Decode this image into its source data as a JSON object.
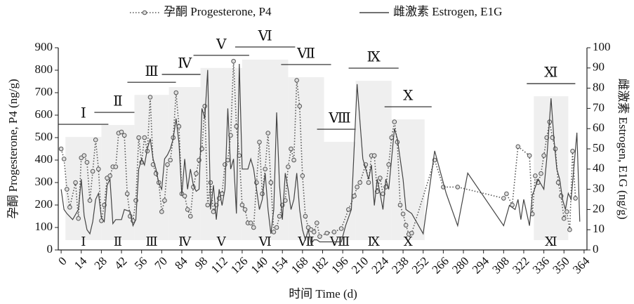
{
  "chart_data": {
    "type": "line",
    "xlabel": "时间 Time (d)",
    "ylabel": "孕酮 Progesterone, P4 (ng/g)",
    "y2label": "雌激素 Estrogen, E1G (ng/g)",
    "xlim": [
      -2,
      366
    ],
    "xticks": [
      0,
      14,
      28,
      42,
      56,
      70,
      84,
      98,
      112,
      126,
      140,
      154,
      168,
      182,
      196,
      210,
      224,
      238,
      252,
      266,
      280,
      294,
      308,
      322,
      336,
      350,
      364
    ],
    "ylim": [
      0,
      900
    ],
    "yticks": [
      0,
      100,
      200,
      300,
      400,
      500,
      600,
      700,
      800,
      900
    ],
    "y2lim": [
      0,
      100
    ],
    "y2ticks": [
      0,
      10,
      20,
      30,
      40,
      50,
      60,
      70,
      80,
      90,
      100
    ],
    "legend": "top",
    "periods": [
      {
        "label": "Ⅰ",
        "start": 3,
        "end": 28,
        "top": 503
      },
      {
        "label": "Ⅱ",
        "start": 28,
        "end": 51,
        "top": 556
      },
      {
        "label": "Ⅲ",
        "start": 51,
        "end": 75,
        "top": 690
      },
      {
        "label": "Ⅳ",
        "start": 75,
        "end": 97,
        "top": 725
      },
      {
        "label": "Ⅴ",
        "start": 97,
        "end": 126,
        "top": 810
      },
      {
        "label": "Ⅵ",
        "start": 126,
        "end": 158,
        "top": 847
      },
      {
        "label": "Ⅶ",
        "start": 158,
        "end": 183,
        "top": 769
      },
      {
        "label": "Ⅷ",
        "start": 183,
        "end": 205,
        "top": 481
      },
      {
        "label": "Ⅸ",
        "start": 205,
        "end": 230,
        "top": 753
      },
      {
        "label": "Ⅹ",
        "start": 230,
        "end": 253,
        "top": 581
      },
      {
        "label": "Ⅺ",
        "start": 329,
        "end": 353,
        "top": 684
      }
    ],
    "series": [
      {
        "name": "孕酮 Progesterone, P4",
        "color": "#555555",
        "style": "dotted",
        "x": [
          0,
          2,
          4,
          6,
          10,
          12,
          14,
          16,
          18,
          20,
          22,
          24,
          26,
          28,
          30,
          32,
          34,
          36,
          38,
          40,
          42,
          44,
          46,
          48,
          50,
          52,
          54,
          56,
          58,
          60,
          62,
          64,
          66,
          68,
          70,
          72,
          74,
          76,
          78,
          80,
          82,
          84,
          86,
          88,
          90,
          92,
          94,
          96,
          98,
          100,
          102,
          104,
          106,
          108,
          110,
          112,
          114,
          116,
          118,
          120,
          122,
          124,
          126,
          128,
          130,
          132,
          134,
          136,
          138,
          140,
          142,
          144,
          146,
          148,
          150,
          152,
          154,
          156,
          158,
          160,
          162,
          164,
          166,
          168,
          170,
          172,
          174,
          176,
          178,
          180,
          185,
          190,
          195,
          200,
          204,
          206,
          208,
          212,
          214,
          216,
          218,
          220,
          222,
          224,
          226,
          228,
          230,
          232,
          234,
          236,
          238,
          240,
          242,
          244,
          260,
          266,
          276,
          308,
          310,
          314,
          318,
          326,
          328,
          330,
          332,
          334,
          336,
          338,
          340,
          342,
          344,
          346,
          348,
          350,
          352,
          354,
          356,
          358
        ],
        "values": [
          450,
          405,
          270,
          190,
          300,
          140,
          410,
          420,
          390,
          220,
          350,
          490,
          360,
          130,
          200,
          320,
          330,
          370,
          370,
          520,
          525,
          510,
          250,
          150,
          130,
          220,
          500,
          390,
          500,
          440,
          680,
          380,
          340,
          300,
          170,
          220,
          380,
          400,
          500,
          700,
          550,
          250,
          240,
          180,
          150,
          280,
          340,
          400,
          450,
          640,
          200,
          300,
          170,
          200,
          230,
          250,
          380,
          400,
          510,
          840,
          550,
          420,
          200,
          180,
          120,
          120,
          100,
          300,
          480,
          250,
          360,
          520,
          300,
          80,
          100,
          150,
          200,
          220,
          370,
          450,
          400,
          755,
          640,
          330,
          150,
          100,
          90,
          80,
          120,
          60,
          75,
          80,
          95,
          180,
          240,
          280,
          300,
          380,
          300,
          420,
          420,
          260,
          320,
          250,
          280,
          380,
          500,
          570,
          480,
          200,
          160,
          110,
          70,
          75,
          400,
          280,
          280,
          230,
          250,
          200,
          460,
          420,
          160,
          330,
          300,
          340,
          420,
          500,
          570,
          500,
          450,
          300,
          240,
          140,
          170,
          90,
          440,
          230
        ]
      },
      {
        "name": "雌激素 Estrogen, E1G",
        "color": "#444444",
        "style": "solid",
        "axis": "y2",
        "x": [
          0,
          2,
          4,
          8,
          12,
          14,
          16,
          18,
          20,
          22,
          24,
          26,
          28,
          30,
          32,
          34,
          36,
          38,
          42,
          44,
          48,
          50,
          52,
          54,
          56,
          58,
          60,
          62,
          64,
          66,
          68,
          70,
          72,
          74,
          76,
          78,
          80,
          82,
          84,
          86,
          88,
          90,
          92,
          94,
          96,
          98,
          100,
          102,
          104,
          106,
          108,
          110,
          112,
          114,
          116,
          118,
          120,
          122,
          124,
          126,
          128,
          130,
          132,
          134,
          136,
          138,
          140,
          142,
          144,
          146,
          148,
          150,
          152,
          154,
          156,
          158,
          160,
          162,
          164,
          166,
          168,
          170,
          172,
          174,
          176,
          178,
          180,
          195,
          198,
          202,
          206,
          210,
          214,
          216,
          218,
          220,
          222,
          224,
          226,
          228,
          232,
          234,
          238,
          240,
          244,
          252,
          260,
          268,
          276,
          283,
          308,
          312,
          316,
          318,
          320,
          322,
          326,
          328,
          332,
          336,
          338,
          341,
          343,
          345,
          347,
          349,
          351,
          353,
          355,
          359,
          361
        ],
        "values": [
          30,
          20,
          18,
          15,
          20,
          35,
          17,
          10,
          8,
          14,
          25,
          28,
          16,
          14,
          32,
          35,
          13,
          15,
          15,
          20,
          19,
          12,
          15,
          40,
          45,
          42,
          50,
          55,
          45,
          40,
          33,
          30,
          45,
          47,
          50,
          55,
          65,
          53,
          27,
          45,
          30,
          40,
          32,
          29,
          30,
          70,
          65,
          89,
          20,
          32,
          15,
          30,
          22,
          30,
          70,
          40,
          45,
          18,
          92,
          40,
          40,
          40,
          45,
          40,
          30,
          20,
          25,
          38,
          20,
          8,
          20,
          68,
          32,
          15,
          38,
          30,
          20,
          25,
          38,
          20,
          10,
          5,
          10,
          3,
          5,
          5,
          4,
          4,
          12,
          20,
          82,
          45,
          35,
          42,
          22,
          35,
          28,
          20,
          35,
          30,
          60,
          55,
          35,
          20,
          18,
          8,
          49,
          28,
          12,
          38,
          12,
          22,
          20,
          25,
          15,
          25,
          12,
          27,
          35,
          30,
          45,
          75,
          55,
          40,
          35,
          25,
          20,
          28,
          25,
          58,
          14
        ]
      }
    ]
  }
}
